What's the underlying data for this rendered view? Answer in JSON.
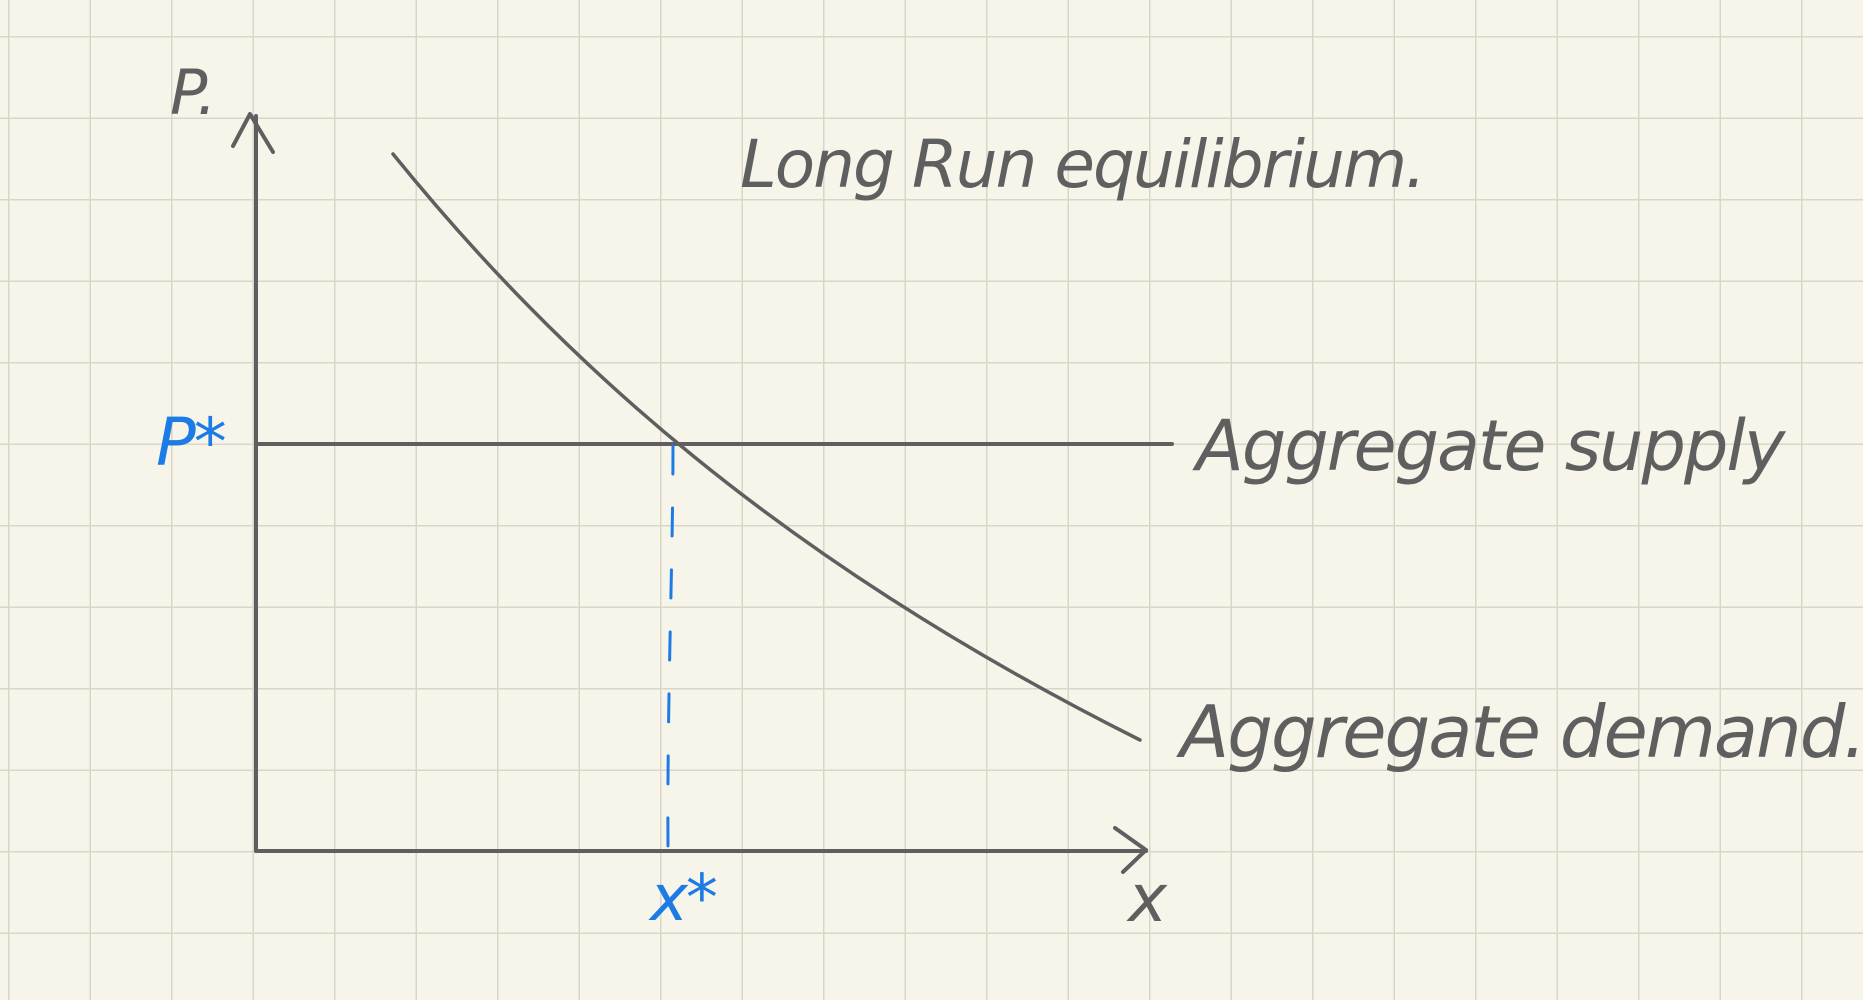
{
  "diagram": {
    "title": "Long Run equilibrium.",
    "y_axis_label": "P.",
    "x_axis_label": "x",
    "price_marker": "P*",
    "quantity_marker": "x*",
    "curves": {
      "supply_label": "Aggregate supply",
      "demand_label": "Aggregate demand."
    }
  },
  "colors": {
    "ink": "#5f5f5f",
    "highlight": "#1d7be6",
    "paper": "#f7f5ea",
    "grid": "#d8d6c8"
  }
}
